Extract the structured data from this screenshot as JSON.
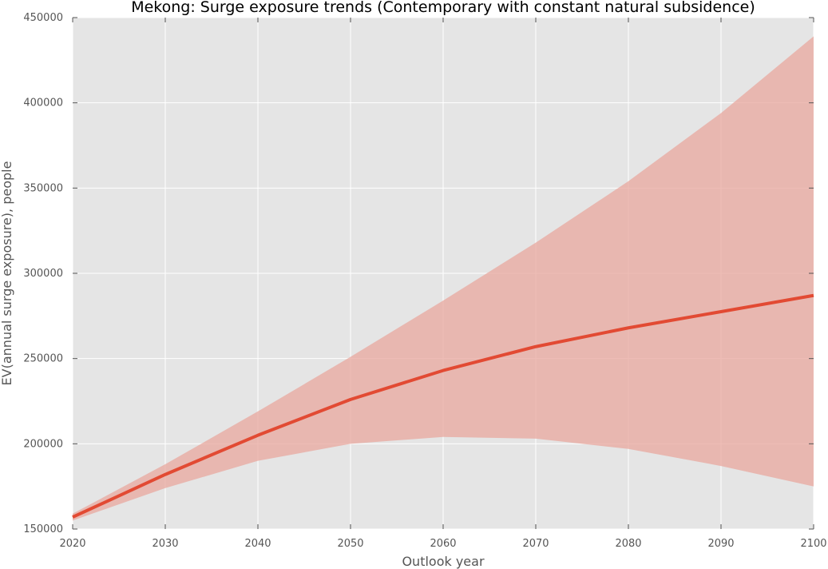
{
  "chart_data": {
    "type": "area",
    "title": "Mekong: Surge exposure trends (Contemporary with constant natural subsidence)",
    "xlabel": "Outlook year",
    "ylabel": "EV(annual surge exposure), people",
    "xlim": [
      2020,
      2100
    ],
    "ylim": [
      150000,
      450000
    ],
    "x_ticks": [
      "2020",
      "2030",
      "2040",
      "2050",
      "2060",
      "2070",
      "2080",
      "2090",
      "2100"
    ],
    "y_ticks": [
      "150000",
      "200000",
      "250000",
      "300000",
      "350000",
      "400000",
      "450000"
    ],
    "grid": true,
    "x": [
      2020,
      2030,
      2040,
      2050,
      2060,
      2070,
      2080,
      2090,
      2100
    ],
    "series": [
      {
        "values": [
          157000,
          182000,
          205000,
          226000,
          243000,
          257000,
          268000,
          277500,
          287000
        ]
      }
    ],
    "band": {
      "lower": [
        155000,
        174000,
        190000,
        200000,
        204000,
        203000,
        197000,
        187000,
        175000
      ],
      "upper": [
        159000,
        188000,
        219000,
        251000,
        284000,
        318000,
        354000,
        394000,
        439000
      ]
    },
    "colors": {
      "line": "#e24a33",
      "band": "#e8a79d",
      "background": "#e5e5e5",
      "grid": "#ffffff"
    }
  }
}
